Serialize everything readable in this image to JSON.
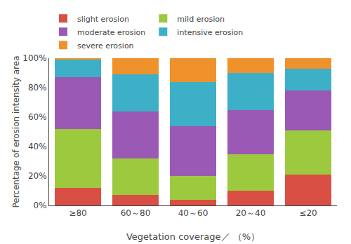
{
  "chart_data": {
    "type": "bar",
    "stacked": true,
    "categories": [
      "≥80",
      "60～80",
      "40～60",
      "20～40",
      "≤20"
    ],
    "series": [
      {
        "name": "slight erosion",
        "color": "#d94f43",
        "values": [
          12,
          7,
          4,
          10,
          21
        ]
      },
      {
        "name": "mild erosion",
        "color": "#9dc93e",
        "values": [
          40,
          25,
          16,
          25,
          30
        ]
      },
      {
        "name": "moderate erosion",
        "color": "#9b59b6",
        "values": [
          35,
          32,
          34,
          30,
          27
        ]
      },
      {
        "name": "intensive erosion",
        "color": "#3db0c8",
        "values": [
          12,
          25,
          30,
          25,
          15
        ]
      },
      {
        "name": "severe erosion",
        "color": "#f0922b",
        "values": [
          1,
          11,
          16,
          10,
          7
        ]
      }
    ],
    "ylabel": "Percentage of erosion intensity area",
    "xlabel": "Vegetation coverage／ （%）",
    "ylim": [
      0,
      100
    ],
    "yticks": [
      {
        "value": 0,
        "label": "0%"
      },
      {
        "value": 20,
        "label": "20%"
      },
      {
        "value": 40,
        "label": "40%"
      },
      {
        "value": 60,
        "label": "60%"
      },
      {
        "value": 80,
        "label": "80%"
      },
      {
        "value": 100,
        "label": "100%"
      }
    ],
    "grid": false,
    "legend": "top"
  }
}
